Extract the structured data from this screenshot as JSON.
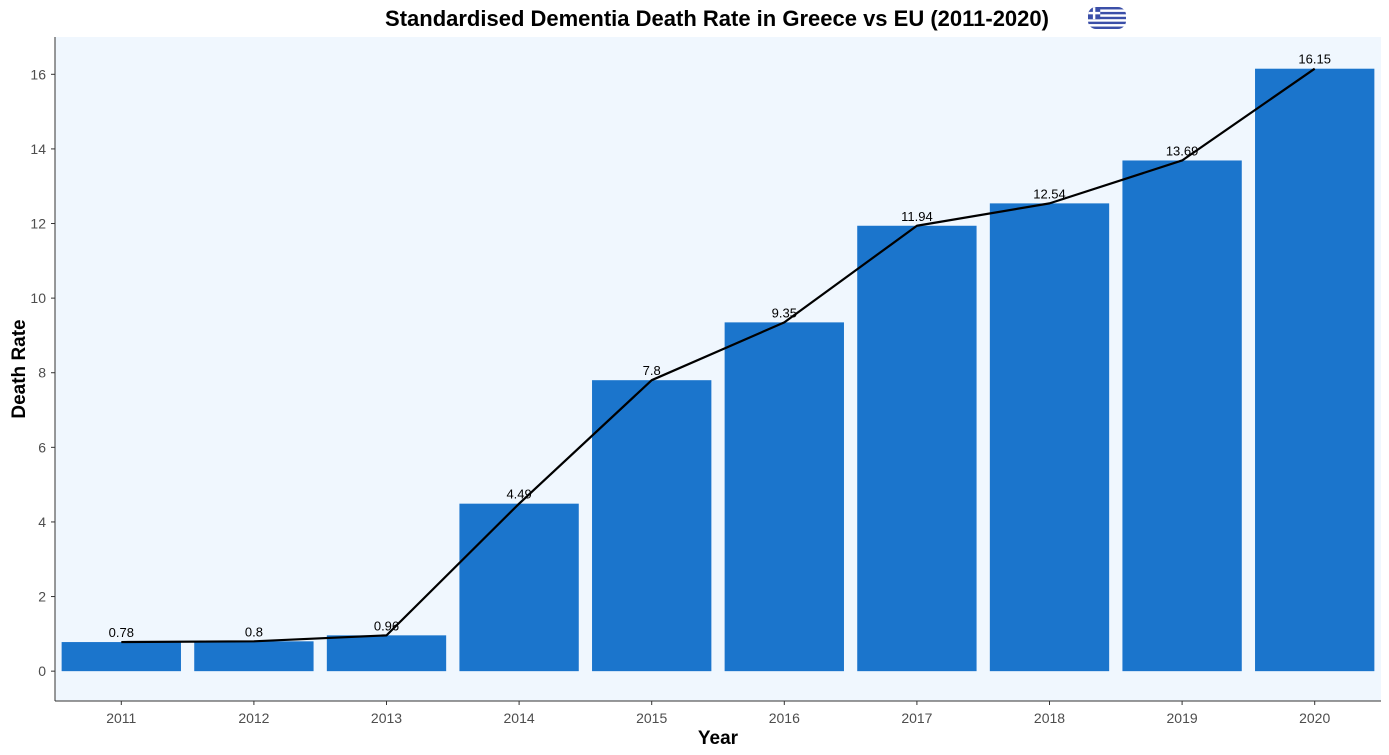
{
  "chart_data": {
    "type": "bar",
    "title": "Standardised Dementia Death Rate in Greece vs EU (2011-2020)",
    "title_icon": "greece-flag-icon",
    "xlabel": "Year",
    "ylabel": "Death Rate",
    "categories": [
      "2011",
      "2012",
      "2013",
      "2014",
      "2015",
      "2016",
      "2017",
      "2018",
      "2019",
      "2020"
    ],
    "values": [
      0.78,
      0.8,
      0.96,
      4.49,
      7.8,
      9.35,
      11.94,
      12.54,
      13.69,
      16.15
    ],
    "data_labels": [
      "0.78",
      "0.8",
      "0.96",
      "4.49",
      "7.8",
      "9.35",
      "11.94",
      "12.54",
      "13.69",
      "16.15"
    ],
    "overlay": "line",
    "ylim": [
      -0.8,
      17
    ],
    "yticks": [
      0,
      2,
      4,
      6,
      8,
      10,
      12,
      14,
      16
    ],
    "grid": false,
    "legend": "none",
    "colors": {
      "bar": "#1b75cc",
      "line": "#000000",
      "panel_background": "#f0f7fe",
      "flag_blue": "#3b4fa8"
    }
  }
}
